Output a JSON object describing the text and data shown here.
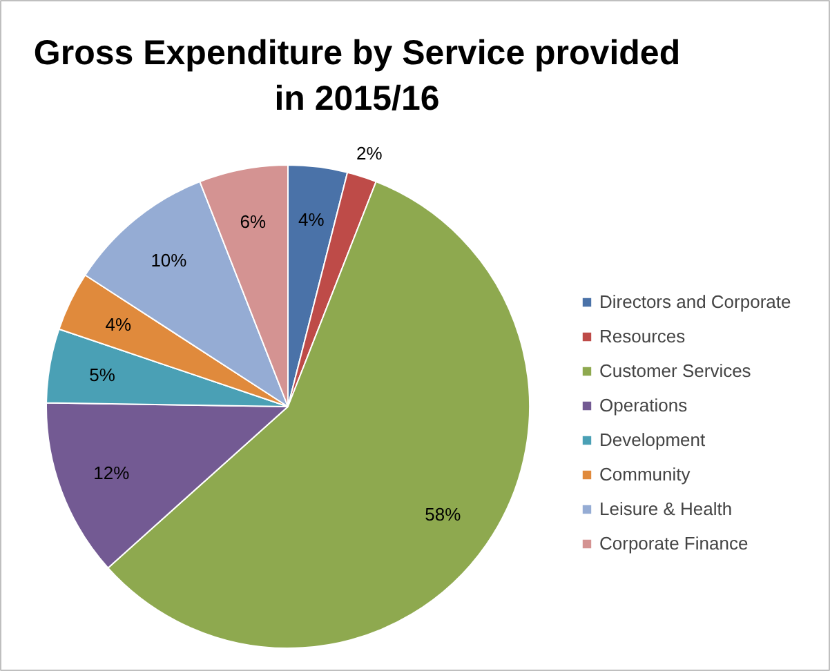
{
  "chart_data": {
    "type": "pie",
    "title": "Gross Expenditure by Service provided\nin 2015/16",
    "categories": [
      "Directors and Corporate",
      "Resources",
      "Customer Services",
      "Operations",
      "Development",
      "Community",
      "Leisure & Health",
      "Corporate Finance"
    ],
    "values": [
      4,
      2,
      58,
      12,
      5,
      4,
      10,
      6
    ],
    "colors": [
      "#4a72a8",
      "#be4b48",
      "#8ea94f",
      "#735a93",
      "#4aa0b5",
      "#e08a3c",
      "#95acd4",
      "#d49392"
    ],
    "value_labels": [
      "4%",
      "2%",
      "58%",
      "12%",
      "5%",
      "4%",
      "10%",
      "6%"
    ],
    "legend": "right"
  }
}
